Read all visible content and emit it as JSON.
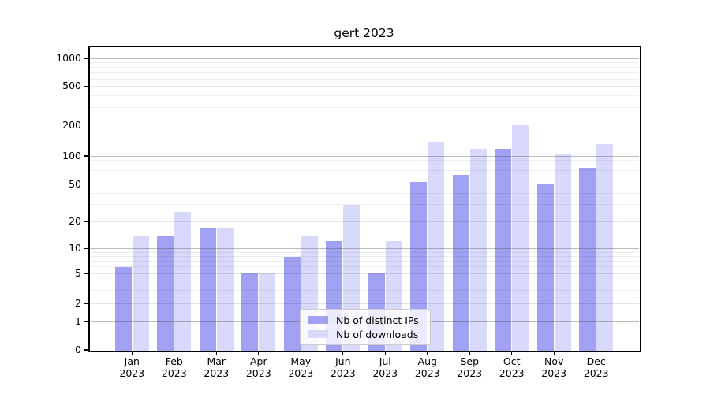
{
  "title": "gert 2023",
  "chart_data": {
    "type": "bar",
    "title": "gert 2023",
    "categories": [
      "Jan 2023",
      "Feb 2023",
      "Mar 2023",
      "Apr 2023",
      "May 2023",
      "Jun 2023",
      "Jul 2023",
      "Aug 2023",
      "Sep 2023",
      "Oct 2023",
      "Nov 2023",
      "Dec 2023"
    ],
    "x_tick_months": [
      "Jan",
      "Feb",
      "Mar",
      "Apr",
      "May",
      "Jun",
      "Jul",
      "Aug",
      "Sep",
      "Oct",
      "Nov",
      "Dec"
    ],
    "x_tick_year": "2023",
    "series": [
      {
        "name": "Nb of distinct IPs",
        "color": "#a0a1f2",
        "values": [
          6,
          14,
          17,
          5,
          8,
          12,
          5,
          53,
          62,
          118,
          50,
          74
        ]
      },
      {
        "name": "Nb of downloads",
        "color": "#d9dafb",
        "values": [
          14,
          25,
          17,
          5,
          14,
          30,
          12,
          137,
          118,
          202,
          103,
          130
        ]
      }
    ],
    "xlabel": "",
    "ylabel": "",
    "yscale": "symlog",
    "y_ticks": [
      0,
      1,
      2,
      5,
      10,
      20,
      50,
      100,
      200,
      500,
      1000
    ],
    "ylim": [
      0,
      1000
    ],
    "grid": "both, drawn over bars",
    "legend_position": "lower center",
    "background_color": "#ffffff",
    "spine_color": "#000000"
  },
  "legend": {
    "items": [
      {
        "label": "Nb of distinct IPs",
        "color": "#a0a1f2"
      },
      {
        "label": "Nb of downloads",
        "color": "#d9dafb"
      }
    ]
  }
}
